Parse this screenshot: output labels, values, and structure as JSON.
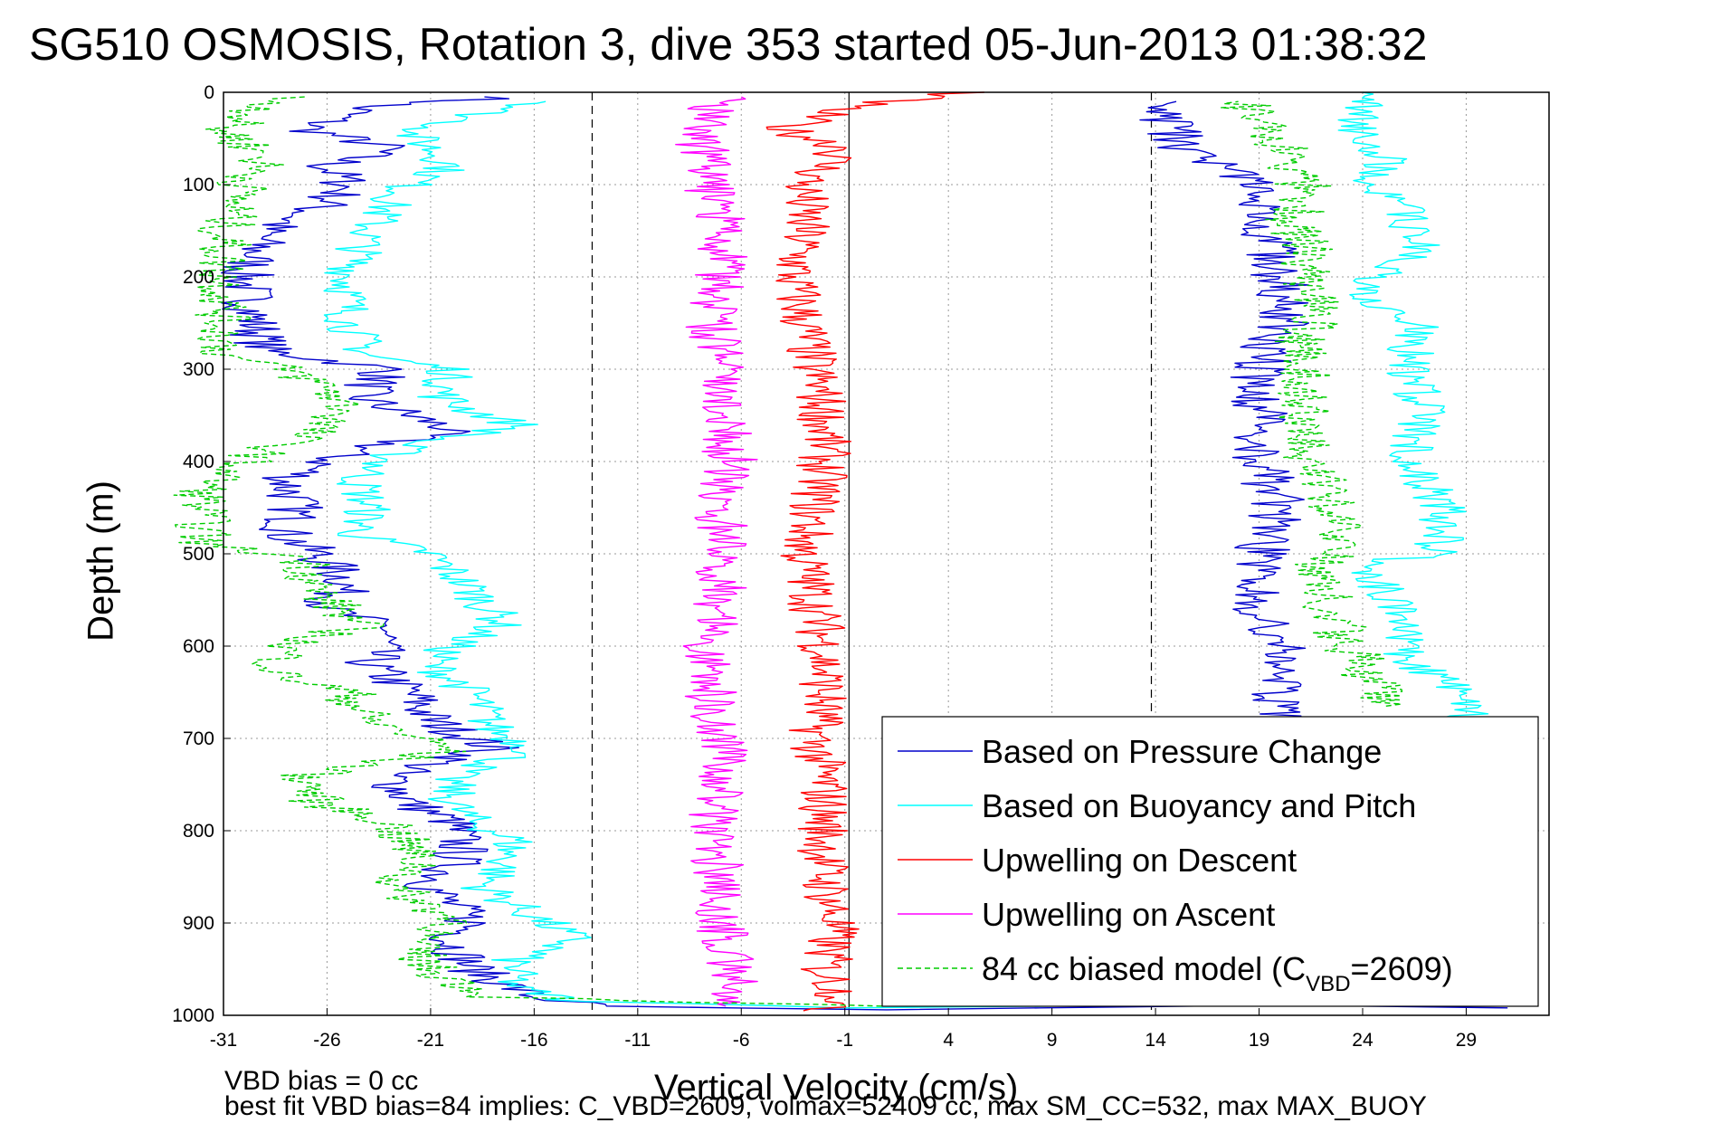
{
  "chart_data": {
    "type": "line",
    "title": "SG510 OSMOSIS, Rotation 3, dive 353 started 05-Jun-2013 01:38:32",
    "xlabel": "Vertical Velocity (cm/s)",
    "ylabel": "Depth (m)",
    "xlim": [
      -31,
      33
    ],
    "ylim": [
      0,
      1000
    ],
    "y_reversed": true,
    "xticks": [
      "-31",
      "-26",
      "-21",
      "-16",
      "-11",
      "-6",
      "-1",
      "4",
      "9",
      "14",
      "19",
      "24",
      "29"
    ],
    "yticks": [
      "0",
      "100",
      "200",
      "300",
      "400",
      "500",
      "600",
      "700",
      "800",
      "900",
      "1000"
    ],
    "grid": true,
    "legend_position": "bottom-right",
    "reference_lines": [
      {
        "x": -13.2,
        "style": "dashed",
        "color": "#000000"
      },
      {
        "x": -0.8,
        "style": "solid",
        "color": "#000000"
      },
      {
        "x": 13.8,
        "style": "dashed",
        "color": "#000000"
      }
    ],
    "series": [
      {
        "name": "Based on Pressure Change",
        "color": "#0000cc",
        "dash": "solid",
        "noise": 1.4,
        "points": [
          [
            -17,
            5
          ],
          [
            -24,
            15
          ],
          [
            -27,
            40
          ],
          [
            -23,
            60
          ],
          [
            -26,
            80
          ],
          [
            -25,
            100
          ],
          [
            -26,
            120
          ],
          [
            -29,
            150
          ],
          [
            -30,
            200
          ],
          [
            -29.5,
            250
          ],
          [
            -29,
            280
          ],
          [
            -23,
            300
          ],
          [
            -24.5,
            330
          ],
          [
            -22,
            350
          ],
          [
            -20,
            365
          ],
          [
            -25,
            390
          ],
          [
            -28,
            420
          ],
          [
            -27.5,
            450
          ],
          [
            -28,
            480
          ],
          [
            -26.5,
            500
          ],
          [
            -25,
            530
          ],
          [
            -26,
            560
          ],
          [
            -23,
            580
          ],
          [
            -24,
            620
          ],
          [
            -22,
            650
          ],
          [
            -21,
            680
          ],
          [
            -18,
            710
          ],
          [
            -23,
            740
          ],
          [
            -22,
            770
          ],
          [
            -20,
            790
          ],
          [
            -19.5,
            820
          ],
          [
            -20,
            840
          ],
          [
            -21,
            860
          ],
          [
            -20,
            880
          ],
          [
            -19,
            900
          ],
          [
            -20,
            920
          ],
          [
            -19,
            950
          ],
          [
            -16,
            980
          ],
          [
            -13,
            990
          ],
          [
            0,
            994
          ],
          [
            15,
            990
          ],
          [
            24,
            985
          ],
          [
            24.5,
            990
          ],
          [
            31,
            992
          ]
        ],
        "ascent_points": [
          [
            20,
            680
          ],
          [
            20,
            650
          ],
          [
            20,
            620
          ],
          [
            20,
            600
          ],
          [
            19,
            560
          ],
          [
            19,
            520
          ],
          [
            19,
            500
          ],
          [
            20,
            450
          ],
          [
            19,
            400
          ],
          [
            19,
            350
          ],
          [
            19,
            300
          ],
          [
            20,
            250
          ],
          [
            20,
            200
          ],
          [
            19.5,
            150
          ],
          [
            18.5,
            100
          ],
          [
            15.5,
            60
          ],
          [
            14.5,
            30
          ],
          [
            15,
            10
          ]
        ]
      },
      {
        "name": "Based on Buoyancy and Pitch",
        "color": "#00ffff",
        "dash": "solid",
        "noise": 1.2,
        "points": [
          [
            -15,
            10
          ],
          [
            -18,
            20
          ],
          [
            -22,
            45
          ],
          [
            -21,
            60
          ],
          [
            -20,
            80
          ],
          [
            -22,
            100
          ],
          [
            -23,
            120
          ],
          [
            -24,
            150
          ],
          [
            -25,
            200
          ],
          [
            -25,
            250
          ],
          [
            -24,
            285
          ],
          [
            -20,
            300
          ],
          [
            -20.5,
            330
          ],
          [
            -19,
            345
          ],
          [
            -16.5,
            362
          ],
          [
            -22,
            380
          ],
          [
            -24.5,
            420
          ],
          [
            -24,
            450
          ],
          [
            -24.5,
            480
          ],
          [
            -21,
            500
          ],
          [
            -19,
            540
          ],
          [
            -17.5,
            575
          ],
          [
            -20,
            600
          ],
          [
            -21,
            620
          ],
          [
            -19,
            650
          ],
          [
            -18,
            690
          ],
          [
            -16,
            712
          ],
          [
            -20,
            740
          ],
          [
            -20,
            770
          ],
          [
            -19,
            790
          ],
          [
            -17,
            810
          ],
          [
            -17.5,
            840
          ],
          [
            -18.5,
            860
          ],
          [
            -17,
            880
          ],
          [
            -14,
            918
          ],
          [
            -17,
            940
          ],
          [
            -17,
            970
          ],
          [
            -14,
            985
          ],
          [
            0,
            992
          ],
          [
            20,
            988
          ],
          [
            30,
            990
          ]
        ],
        "ascent_points": [
          [
            29,
            680
          ],
          [
            29.5,
            660
          ],
          [
            28,
            640
          ],
          [
            26,
            615
          ],
          [
            26,
            580
          ],
          [
            25,
            540
          ],
          [
            24.5,
            510
          ],
          [
            27.5,
            500
          ],
          [
            28,
            450
          ],
          [
            27,
            420
          ],
          [
            26,
            400
          ],
          [
            26.5,
            370
          ],
          [
            27,
            340
          ],
          [
            26,
            300
          ],
          [
            26.5,
            270
          ],
          [
            27,
            250
          ],
          [
            24.5,
            230
          ],
          [
            24.5,
            200
          ],
          [
            27,
            170
          ],
          [
            26,
            130
          ],
          [
            24.5,
            100
          ],
          [
            25,
            70
          ],
          [
            24,
            50
          ],
          [
            24,
            30
          ],
          [
            24,
            10
          ],
          [
            24,
            0
          ]
        ]
      },
      {
        "name": "Upwelling on Descent",
        "color": "#ff0000",
        "dash": "solid",
        "noise": 1.3,
        "points": [
          [
            5,
            0
          ],
          [
            -1,
            15
          ],
          [
            -4,
            40
          ],
          [
            -1,
            60
          ],
          [
            -3,
            100
          ],
          [
            -3,
            150
          ],
          [
            -3.5,
            200
          ],
          [
            -3,
            250
          ],
          [
            -2.5,
            300
          ],
          [
            -2,
            350
          ],
          [
            -2,
            400
          ],
          [
            -2.5,
            450
          ],
          [
            -3,
            500
          ],
          [
            -2.5,
            550
          ],
          [
            -2,
            600
          ],
          [
            -2,
            650
          ],
          [
            -2.5,
            700
          ],
          [
            -2,
            750
          ],
          [
            -2,
            800
          ],
          [
            -2,
            850
          ],
          [
            -1.5,
            900
          ],
          [
            -2,
            950
          ],
          [
            -1,
            985
          ],
          [
            -3,
            995
          ]
        ]
      },
      {
        "name": "Upwelling on Ascent",
        "color": "#ff00ff",
        "dash": "solid",
        "noise": 1.3,
        "points": [
          [
            -6,
            990
          ],
          [
            -6.5,
            950
          ],
          [
            -7,
            900
          ],
          [
            -7,
            850
          ],
          [
            -7.5,
            800
          ],
          [
            -7,
            750
          ],
          [
            -7,
            700
          ],
          [
            -7.5,
            650
          ],
          [
            -7.5,
            600
          ],
          [
            -7,
            550
          ],
          [
            -7,
            500
          ],
          [
            -7,
            450
          ],
          [
            -6.5,
            400
          ],
          [
            -7,
            350
          ],
          [
            -7,
            300
          ],
          [
            -7.5,
            250
          ],
          [
            -7,
            200
          ],
          [
            -7,
            150
          ],
          [
            -7.5,
            100
          ],
          [
            -8,
            50
          ],
          [
            -7.5,
            20
          ],
          [
            -6,
            5
          ]
        ]
      },
      {
        "name": "84 cc biased model (C_VBD=2609)",
        "color": "#00cc00",
        "dash": "dashed",
        "noise": 1.4,
        "points": [
          [
            -28,
            5
          ],
          [
            -31,
            40
          ],
          [
            -29,
            70
          ],
          [
            -30,
            100
          ],
          [
            -31,
            150
          ],
          [
            -31,
            200
          ],
          [
            -31,
            250
          ],
          [
            -31,
            285
          ],
          [
            -28,
            300
          ],
          [
            -26,
            320
          ],
          [
            -25,
            345
          ],
          [
            -27,
            370
          ],
          [
            -30,
            400
          ],
          [
            -32,
            430
          ],
          [
            -32,
            460
          ],
          [
            -32,
            490
          ],
          [
            -27,
            505
          ],
          [
            -26.5,
            540
          ],
          [
            -24.5,
            578
          ],
          [
            -28,
            600
          ],
          [
            -28.5,
            630
          ],
          [
            -25,
            650
          ],
          [
            -24,
            680
          ],
          [
            -20,
            712
          ],
          [
            -27,
            740
          ],
          [
            -26.5,
            770
          ],
          [
            -23,
            790
          ],
          [
            -22,
            820
          ],
          [
            -21.5,
            840
          ],
          [
            -23,
            860
          ],
          [
            -19.5,
            900
          ],
          [
            -22,
            920
          ],
          [
            -21,
            950
          ],
          [
            -18,
            980
          ],
          [
            0,
            990
          ],
          [
            18,
            988
          ],
          [
            25,
            990
          ]
        ],
        "ascent_points": [
          [
            25,
            665
          ],
          [
            24,
            620
          ],
          [
            23,
            590
          ],
          [
            22.5,
            560
          ],
          [
            22,
            520
          ],
          [
            22.5,
            490
          ],
          [
            23,
            460
          ],
          [
            22,
            420
          ],
          [
            21,
            380
          ],
          [
            21,
            350
          ],
          [
            21.5,
            300
          ],
          [
            21,
            270
          ],
          [
            22,
            240
          ],
          [
            21,
            210
          ],
          [
            21.5,
            170
          ],
          [
            20.5,
            140
          ],
          [
            21.5,
            110
          ],
          [
            20.5,
            80
          ],
          [
            20,
            50
          ],
          [
            19,
            30
          ],
          [
            18,
            10
          ]
        ]
      }
    ]
  },
  "legend": {
    "items": [
      {
        "label": "Based on Pressure Change",
        "color": "#0000cc",
        "dash": "solid"
      },
      {
        "label": "Based on Buoyancy and Pitch",
        "color": "#00ffff",
        "dash": "solid"
      },
      {
        "label": "Upwelling on Descent",
        "color": "#ff0000",
        "dash": "solid"
      },
      {
        "label": "Upwelling on Ascent",
        "color": "#ff00ff",
        "dash": "solid"
      },
      {
        "label": "84 cc biased model (C",
        "label_sub": "VBD",
        "label_end": "=2609)",
        "color": "#00cc00",
        "dash": "dashed"
      }
    ]
  },
  "footer": {
    "line1": "VBD bias = 0 cc",
    "line2": "best fit VBD bias=84 implies: C_VBD=2609, volmax=52409 cc, max SM_CC=532, max MAX_BUOY"
  }
}
